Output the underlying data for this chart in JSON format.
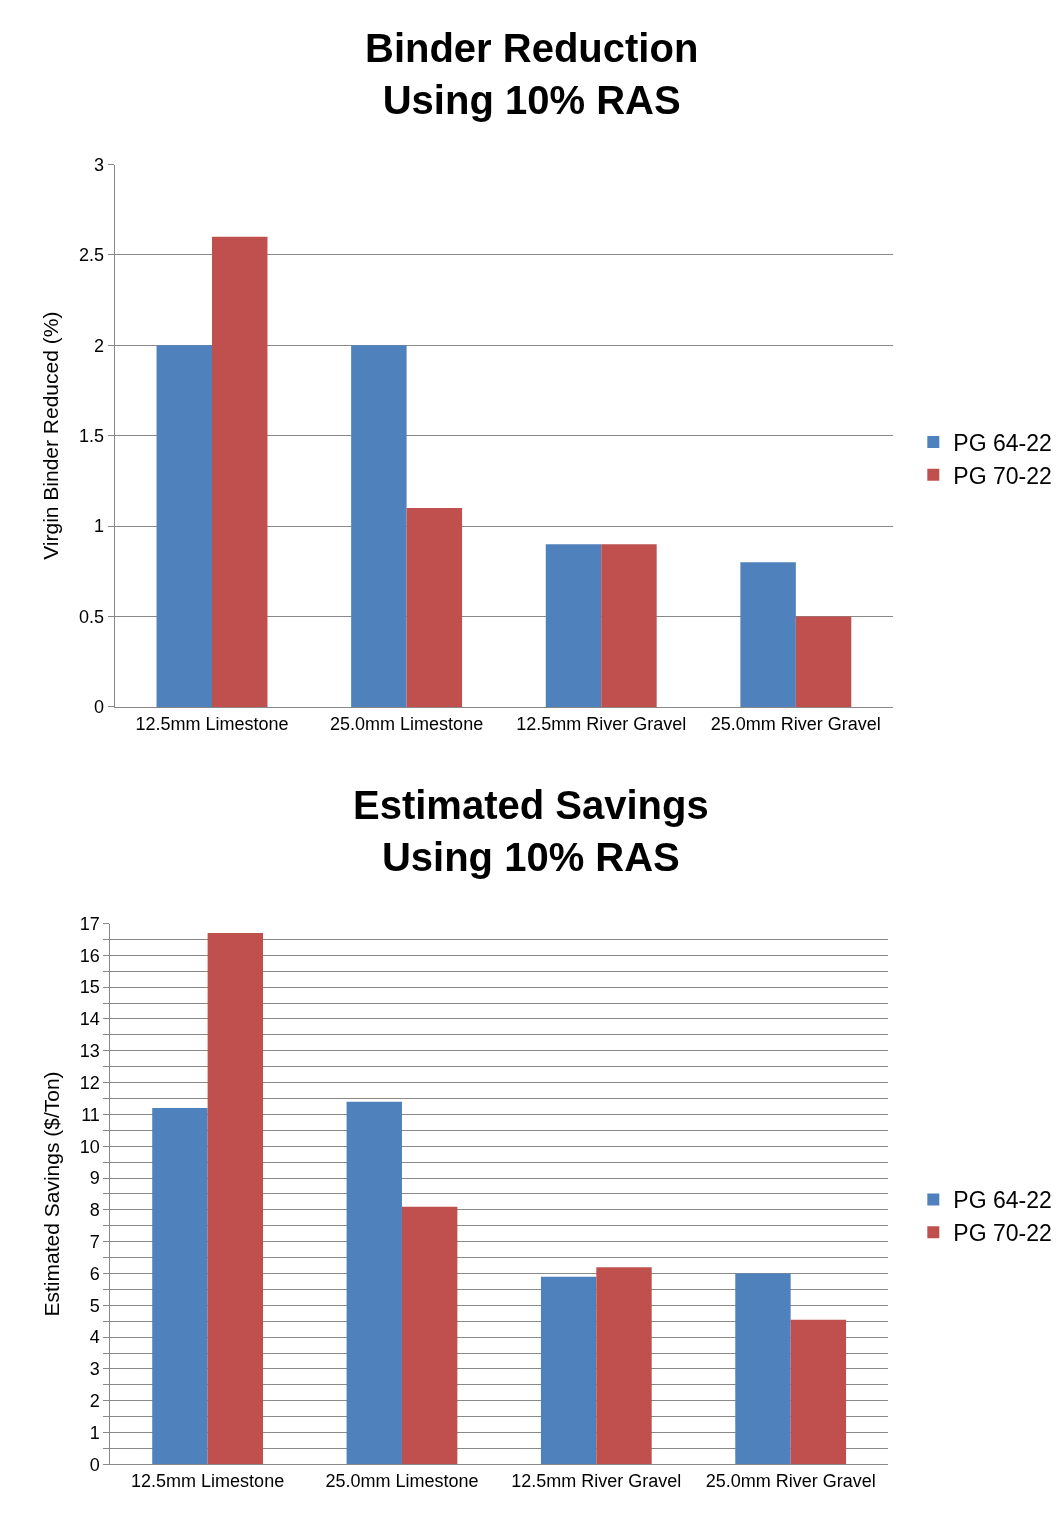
{
  "chart_data": [
    {
      "type": "bar",
      "title": "Binder Reduction\nUsing 10% RAS",
      "ylabel": "Virgin Binder Reduced (%)",
      "categories": [
        "12.5mm Limestone",
        "25.0mm Limestone",
        "12.5mm River Gravel",
        "25.0mm River Gravel"
      ],
      "series": [
        {
          "name": "PG 64-22",
          "color": "#4f81bd",
          "values": [
            2,
            2,
            0.9,
            0.8
          ]
        },
        {
          "name": "PG 70-22",
          "color": "#c0504d",
          "values": [
            2.6,
            1.1,
            0.9,
            0.5
          ]
        }
      ],
      "ylim": [
        0,
        3
      ],
      "yticks": [
        0,
        0.5,
        1,
        1.5,
        2,
        2.5,
        3
      ],
      "grid": "y",
      "legend": "right"
    },
    {
      "type": "bar",
      "title": "Estimated Savings\nUsing 10% RAS",
      "ylabel": "Estimated Savings ($/Ton)",
      "categories": [
        "12.5mm Limestone",
        "25.0mm Limestone",
        "12.5mm River Gravel",
        "25.0mm River Gravel"
      ],
      "series": [
        {
          "name": "PG 64-22",
          "color": "#4f81bd",
          "values": [
            11.2,
            11.4,
            5.9,
            6.0
          ]
        },
        {
          "name": "PG 70-22",
          "color": "#c0504d",
          "values": [
            16.7,
            8.1,
            6.2,
            4.55
          ]
        }
      ],
      "ylim": [
        0,
        17
      ],
      "yticks": [
        0,
        {
          "value": 0.5,
          "label": null
        },
        1,
        {
          "value": 1.5,
          "label": null
        },
        2,
        {
          "value": 2.5,
          "label": null
        },
        3,
        {
          "value": 3.5,
          "label": null
        },
        4,
        {
          "value": 4.5,
          "label": null
        },
        5,
        {
          "value": 5.5,
          "label": null
        },
        6,
        {
          "value": 6.5,
          "label": null
        },
        7,
        {
          "value": 7.5,
          "label": null
        },
        8,
        {
          "value": 8.5,
          "label": null
        },
        9,
        {
          "value": 9.5,
          "label": null
        },
        10,
        {
          "value": 10.5,
          "label": null
        },
        11,
        {
          "value": 11.5,
          "label": null
        },
        12,
        {
          "value": 12.5,
          "label": null
        },
        13,
        {
          "value": 13.5,
          "label": null
        },
        14,
        {
          "value": 14.5,
          "label": null
        },
        15,
        {
          "value": 15.5,
          "label": null
        },
        16,
        {
          "value": 16.5,
          "label": null
        },
        17
      ],
      "grid": "y",
      "legend": "right"
    }
  ]
}
